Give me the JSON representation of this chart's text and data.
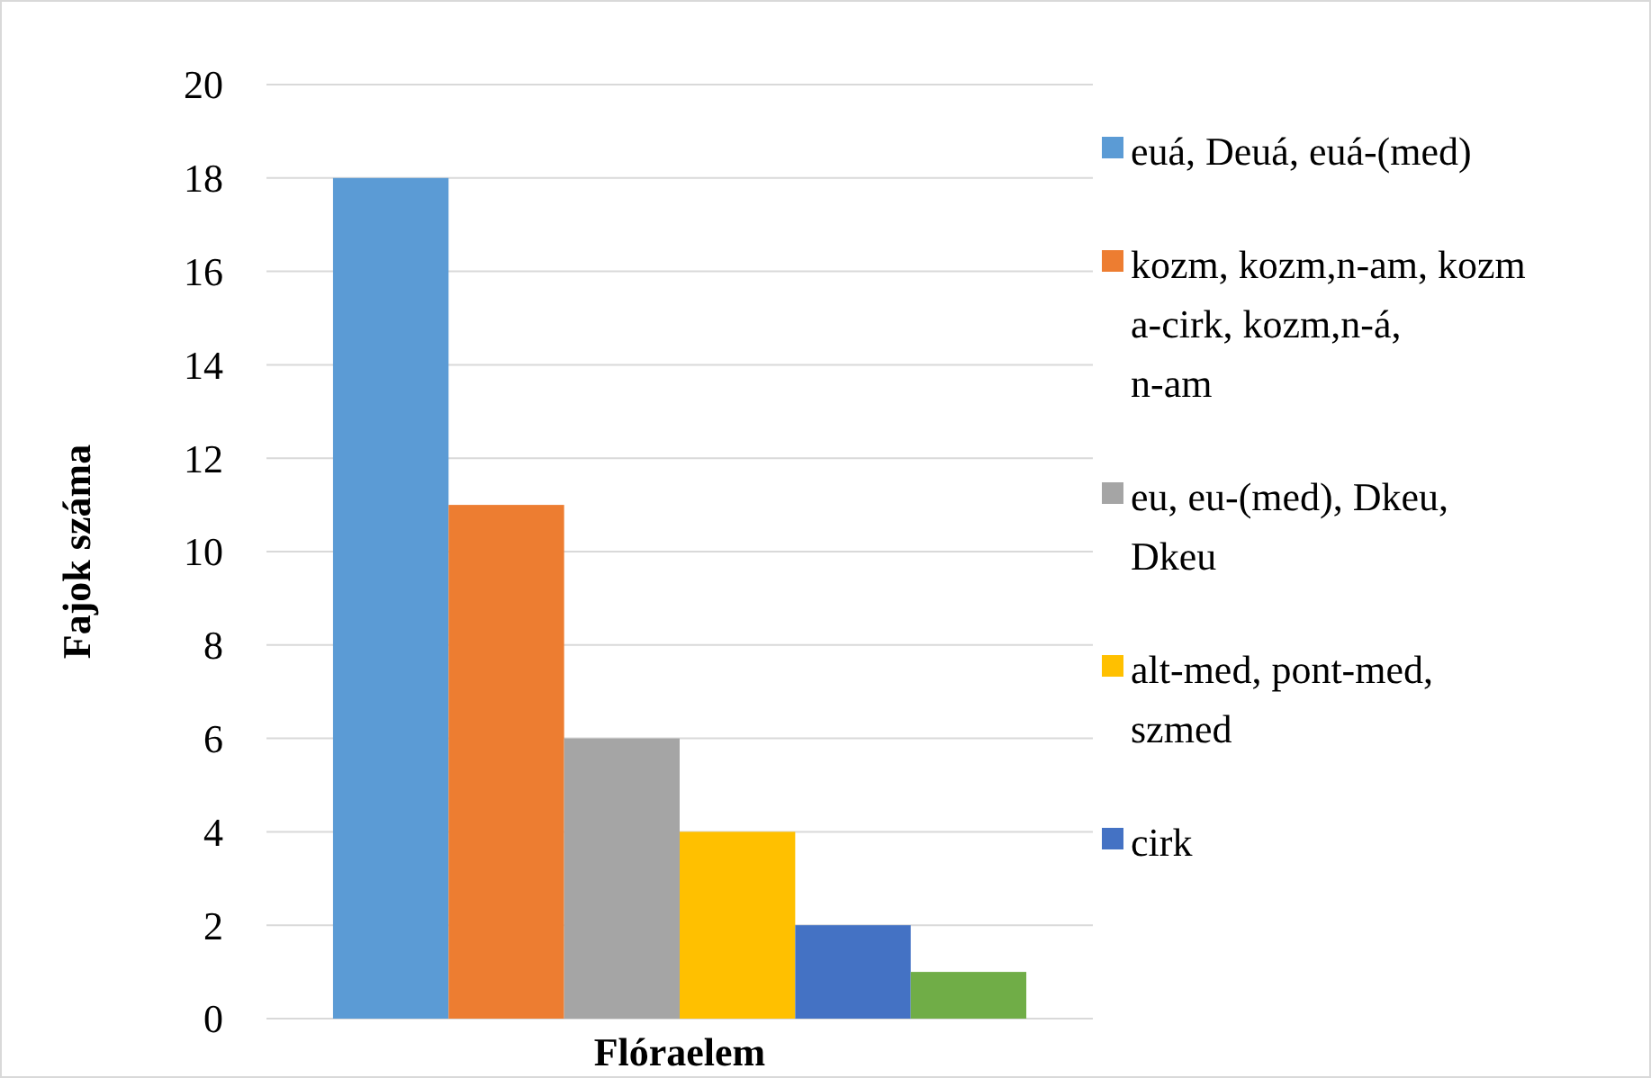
{
  "chart_data": {
    "type": "bar",
    "xlabel": "Flóraelem",
    "ylabel": "Fajok száma",
    "categories": [
      null
    ],
    "series": [
      {
        "name": "euá, Deuá, euá-(med)",
        "color": "#5b9bd5",
        "values": [
          18
        ]
      },
      {
        "name": "kozm, kozm,n-am, kozm a-cirk, kozm,n-á, n-am",
        "color": "#ed7d31",
        "values": [
          11
        ]
      },
      {
        "name": "eu, eu-(med), Dkeu, Dkeu",
        "color": "#a5a5a5",
        "values": [
          6
        ]
      },
      {
        "name": "alt-med, pont-med, szmed",
        "color": "#ffc000",
        "values": [
          4
        ]
      },
      {
        "name": "cirk",
        "color": "#4472c4",
        "values": [
          2
        ]
      },
      {
        "color": "#70ad47",
        "values": [
          1
        ]
      }
    ],
    "ylim": [
      0,
      20
    ],
    "yticks": [
      0,
      2,
      4,
      6,
      8,
      10,
      12,
      14,
      16,
      18,
      20
    ],
    "grid": "y",
    "legend": "right"
  }
}
